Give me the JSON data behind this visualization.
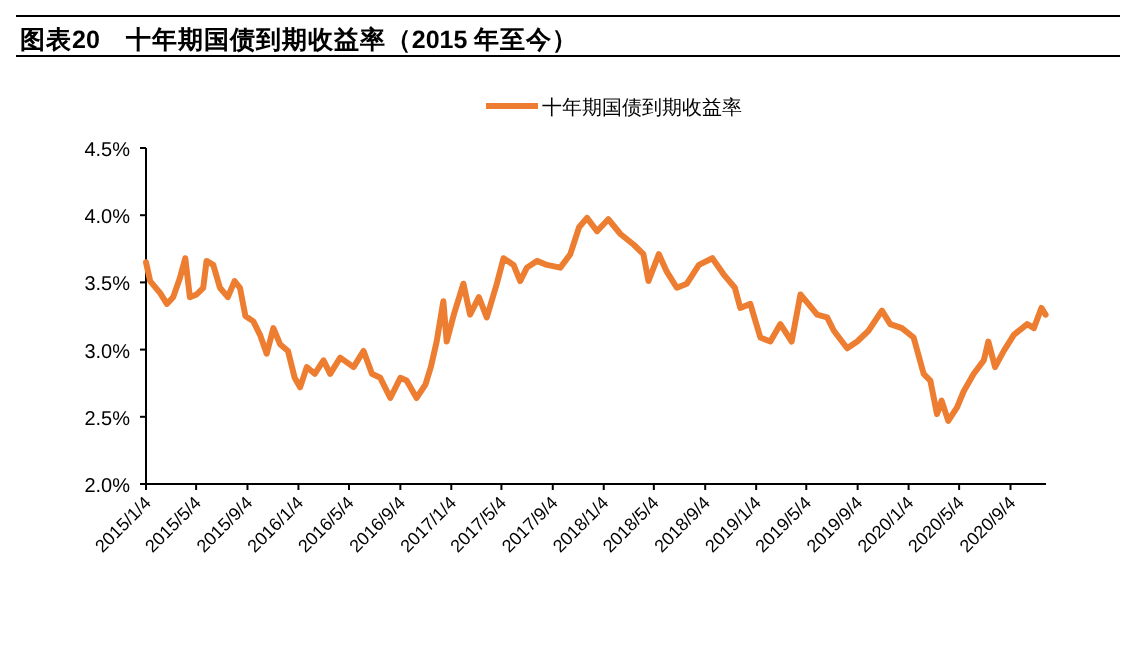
{
  "chart_data": {
    "type": "line",
    "title": "图表20　十年期国债到期收益率（2015 年至今）",
    "legend": "top",
    "grid": false,
    "marker": "none",
    "line_style": "solid",
    "xlim": [
      "2015-01-04",
      "2020-11-28"
    ],
    "xticks": [
      {
        "value": "2015-01-04",
        "label": "2015/1/4"
      },
      {
        "value": "2015-05-04",
        "label": "2015/5/4"
      },
      {
        "value": "2015-09-04",
        "label": "2015/9/4"
      },
      {
        "value": "2016-01-04",
        "label": "2016/1/4"
      },
      {
        "value": "2016-05-04",
        "label": "2016/5/4"
      },
      {
        "value": "2016-09-04",
        "label": "2016/9/4"
      },
      {
        "value": "2017-01-04",
        "label": "2017/1/4"
      },
      {
        "value": "2017-05-04",
        "label": "2017/5/4"
      },
      {
        "value": "2017-09-04",
        "label": "2017/9/4"
      },
      {
        "value": "2018-01-04",
        "label": "2018/1/4"
      },
      {
        "value": "2018-05-04",
        "label": "2018/5/4"
      },
      {
        "value": "2018-09-04",
        "label": "2018/9/4"
      },
      {
        "value": "2019-01-04",
        "label": "2019/1/4"
      },
      {
        "value": "2019-05-04",
        "label": "2019/5/4"
      },
      {
        "value": "2019-09-04",
        "label": "2019/9/4"
      },
      {
        "value": "2020-01-04",
        "label": "2020/1/4"
      },
      {
        "value": "2020-05-04",
        "label": "2020/5/4"
      },
      {
        "value": "2020-09-04",
        "label": "2020/9/4"
      }
    ],
    "ylim": [
      2.0,
      4.5
    ],
    "yticks": [
      {
        "value": 2.0,
        "label": "2.0%"
      },
      {
        "value": 2.5,
        "label": "2.5%"
      },
      {
        "value": 3.0,
        "label": "3.0%"
      },
      {
        "value": 3.5,
        "label": "3.5%"
      },
      {
        "value": 4.0,
        "label": "4.0%"
      },
      {
        "value": 4.5,
        "label": "4.5%"
      }
    ],
    "x": [
      "2015-01-04",
      "2015-01-14",
      "2015-02-07",
      "2015-02-23",
      "2015-03-10",
      "2015-03-26",
      "2015-04-08",
      "2015-04-19",
      "2015-05-05",
      "2015-05-21",
      "2015-05-29",
      "2015-06-14",
      "2015-06-30",
      "2015-07-19",
      "2015-08-04",
      "2015-08-17",
      "2015-08-30",
      "2015-09-18",
      "2015-10-04",
      "2015-10-20",
      "2015-11-05",
      "2015-11-21",
      "2015-12-10",
      "2015-12-26",
      "2016-01-08",
      "2016-01-24",
      "2016-02-12",
      "2016-03-04",
      "2016-03-20",
      "2016-04-13",
      "2016-05-15",
      "2016-06-08",
      "2016-06-28",
      "2016-07-18",
      "2016-08-11",
      "2016-09-04",
      "2016-09-19",
      "2016-10-13",
      "2016-11-03",
      "2016-11-16",
      "2016-11-30",
      "2016-12-16",
      "2016-12-24",
      "2017-01-10",
      "2017-02-02",
      "2017-02-18",
      "2017-03-11",
      "2017-03-30",
      "2017-04-23",
      "2017-05-09",
      "2017-06-02",
      "2017-06-18",
      "2017-07-04",
      "2017-07-28",
      "2017-08-21",
      "2017-09-22",
      "2017-10-16",
      "2017-11-06",
      "2017-11-25",
      "2017-12-19",
      "2018-01-15",
      "2018-02-13",
      "2018-03-17",
      "2018-04-09",
      "2018-04-21",
      "2018-05-16",
      "2018-06-04",
      "2018-06-28",
      "2018-07-22",
      "2018-08-20",
      "2018-09-21",
      "2018-10-18",
      "2018-11-14",
      "2018-11-27",
      "2018-12-21",
      "2019-01-14",
      "2019-02-07",
      "2019-03-03",
      "2019-03-30",
      "2019-04-20",
      "2019-05-09",
      "2019-05-30",
      "2019-06-23",
      "2019-07-09",
      "2019-08-10",
      "2019-09-03",
      "2019-09-30",
      "2019-11-01",
      "2019-11-21",
      "2019-12-19",
      "2020-01-16",
      "2020-02-09",
      "2020-02-25",
      "2020-03-12",
      "2020-03-23",
      "2020-04-08",
      "2020-04-29",
      "2020-05-15",
      "2020-06-08",
      "2020-07-02",
      "2020-07-13",
      "2020-07-29",
      "2020-08-19",
      "2020-09-12",
      "2020-10-14",
      "2020-10-30",
      "2020-11-17",
      "2020-11-27"
    ],
    "series": [
      {
        "name": "十年期国债到期收益率",
        "color": "#ed7d31",
        "values": [
          3.65,
          3.51,
          3.42,
          3.34,
          3.39,
          3.53,
          3.68,
          3.39,
          3.41,
          3.46,
          3.66,
          3.63,
          3.46,
          3.39,
          3.51,
          3.46,
          3.25,
          3.21,
          3.11,
          2.97,
          3.16,
          3.04,
          2.99,
          2.79,
          2.72,
          2.87,
          2.82,
          2.92,
          2.82,
          2.94,
          2.87,
          2.99,
          2.82,
          2.79,
          2.64,
          2.79,
          2.77,
          2.64,
          2.74,
          2.87,
          3.06,
          3.36,
          3.06,
          3.26,
          3.49,
          3.26,
          3.39,
          3.24,
          3.49,
          3.68,
          3.63,
          3.51,
          3.61,
          3.66,
          3.63,
          3.61,
          3.71,
          3.91,
          3.98,
          3.88,
          3.97,
          3.86,
          3.78,
          3.71,
          3.51,
          3.71,
          3.58,
          3.46,
          3.49,
          3.63,
          3.68,
          3.56,
          3.46,
          3.31,
          3.34,
          3.09,
          3.06,
          3.19,
          3.06,
          3.41,
          3.34,
          3.26,
          3.24,
          3.14,
          3.01,
          3.06,
          3.14,
          3.29,
          3.19,
          3.16,
          3.09,
          2.82,
          2.77,
          2.52,
          2.62,
          2.47,
          2.57,
          2.69,
          2.82,
          2.92,
          3.06,
          2.87,
          2.99,
          3.11,
          3.19,
          3.16,
          3.31,
          3.26
        ]
      }
    ]
  }
}
